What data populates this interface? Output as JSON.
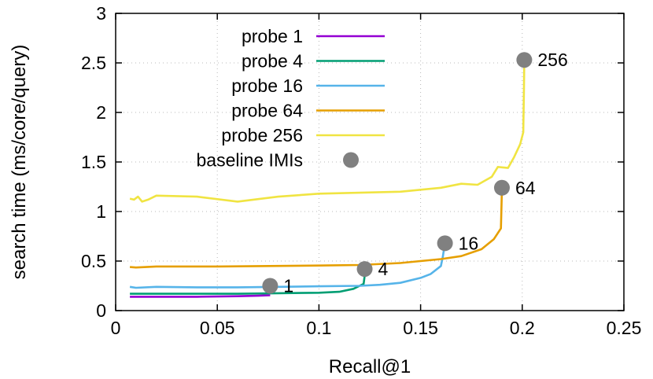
{
  "chart_data": {
    "type": "line",
    "xlabel": "Recall@1",
    "ylabel": "search time (ms/core/query)",
    "xlim": [
      0,
      0.25
    ],
    "ylim": [
      0,
      3
    ],
    "x_ticks": [
      "0",
      "0.05",
      "0.1",
      "0.15",
      "0.2",
      "0.25"
    ],
    "y_ticks": [
      "0",
      "0.5",
      "1",
      "1.5",
      "2",
      "2.5",
      "3"
    ],
    "grid": true,
    "legend_position": "top-center",
    "series": [
      {
        "name": "probe 1",
        "color": "#9400d3",
        "points": [
          [
            0.007,
            0.14
          ],
          [
            0.02,
            0.14
          ],
          [
            0.04,
            0.14
          ],
          [
            0.06,
            0.145
          ],
          [
            0.07,
            0.15
          ],
          [
            0.076,
            0.155
          ]
        ]
      },
      {
        "name": "probe 4",
        "color": "#009e73",
        "points": [
          [
            0.007,
            0.17
          ],
          [
            0.02,
            0.17
          ],
          [
            0.04,
            0.17
          ],
          [
            0.06,
            0.17
          ],
          [
            0.08,
            0.175
          ],
          [
            0.1,
            0.18
          ],
          [
            0.11,
            0.19
          ],
          [
            0.117,
            0.22
          ],
          [
            0.12,
            0.25
          ],
          [
            0.122,
            0.27
          ],
          [
            0.1225,
            0.35
          ],
          [
            0.1228,
            0.42
          ]
        ]
      },
      {
        "name": "probe 16",
        "color": "#56b4e9",
        "points": [
          [
            0.007,
            0.24
          ],
          [
            0.01,
            0.23
          ],
          [
            0.02,
            0.24
          ],
          [
            0.04,
            0.235
          ],
          [
            0.06,
            0.235
          ],
          [
            0.08,
            0.24
          ],
          [
            0.1,
            0.245
          ],
          [
            0.12,
            0.25
          ],
          [
            0.13,
            0.26
          ],
          [
            0.14,
            0.28
          ],
          [
            0.15,
            0.33
          ],
          [
            0.155,
            0.37
          ],
          [
            0.16,
            0.45
          ],
          [
            0.161,
            0.55
          ],
          [
            0.1615,
            0.62
          ],
          [
            0.162,
            0.68
          ]
        ]
      },
      {
        "name": "probe 64",
        "color": "#e69f00",
        "points": [
          [
            0.007,
            0.44
          ],
          [
            0.01,
            0.435
          ],
          [
            0.02,
            0.445
          ],
          [
            0.05,
            0.445
          ],
          [
            0.1,
            0.455
          ],
          [
            0.12,
            0.46
          ],
          [
            0.14,
            0.48
          ],
          [
            0.16,
            0.52
          ],
          [
            0.17,
            0.55
          ],
          [
            0.18,
            0.62
          ],
          [
            0.186,
            0.72
          ],
          [
            0.1895,
            0.83
          ],
          [
            0.1898,
            1.05
          ],
          [
            0.19,
            1.24
          ]
        ]
      },
      {
        "name": "probe 256",
        "color": "#f0e442",
        "points": [
          [
            0.007,
            1.13
          ],
          [
            0.009,
            1.12
          ],
          [
            0.011,
            1.15
          ],
          [
            0.013,
            1.1
          ],
          [
            0.016,
            1.12
          ],
          [
            0.02,
            1.16
          ],
          [
            0.04,
            1.15
          ],
          [
            0.06,
            1.1
          ],
          [
            0.08,
            1.15
          ],
          [
            0.1,
            1.18
          ],
          [
            0.12,
            1.19
          ],
          [
            0.14,
            1.2
          ],
          [
            0.16,
            1.24
          ],
          [
            0.17,
            1.28
          ],
          [
            0.178,
            1.27
          ],
          [
            0.185,
            1.35
          ],
          [
            0.188,
            1.45
          ],
          [
            0.193,
            1.44
          ],
          [
            0.196,
            1.55
          ],
          [
            0.199,
            1.68
          ],
          [
            0.2005,
            1.8
          ],
          [
            0.2008,
            2.2
          ],
          [
            0.201,
            2.53
          ]
        ]
      }
    ],
    "baseline_points": {
      "name": "baseline IMIs",
      "color": "#808080",
      "points": [
        {
          "x": 0.076,
          "y": 0.25,
          "label": "1"
        },
        {
          "x": 0.1225,
          "y": 0.42,
          "label": "4"
        },
        {
          "x": 0.162,
          "y": 0.68,
          "label": "16"
        },
        {
          "x": 0.19,
          "y": 1.24,
          "label": "64"
        },
        {
          "x": 0.201,
          "y": 2.53,
          "label": "256"
        }
      ]
    }
  }
}
